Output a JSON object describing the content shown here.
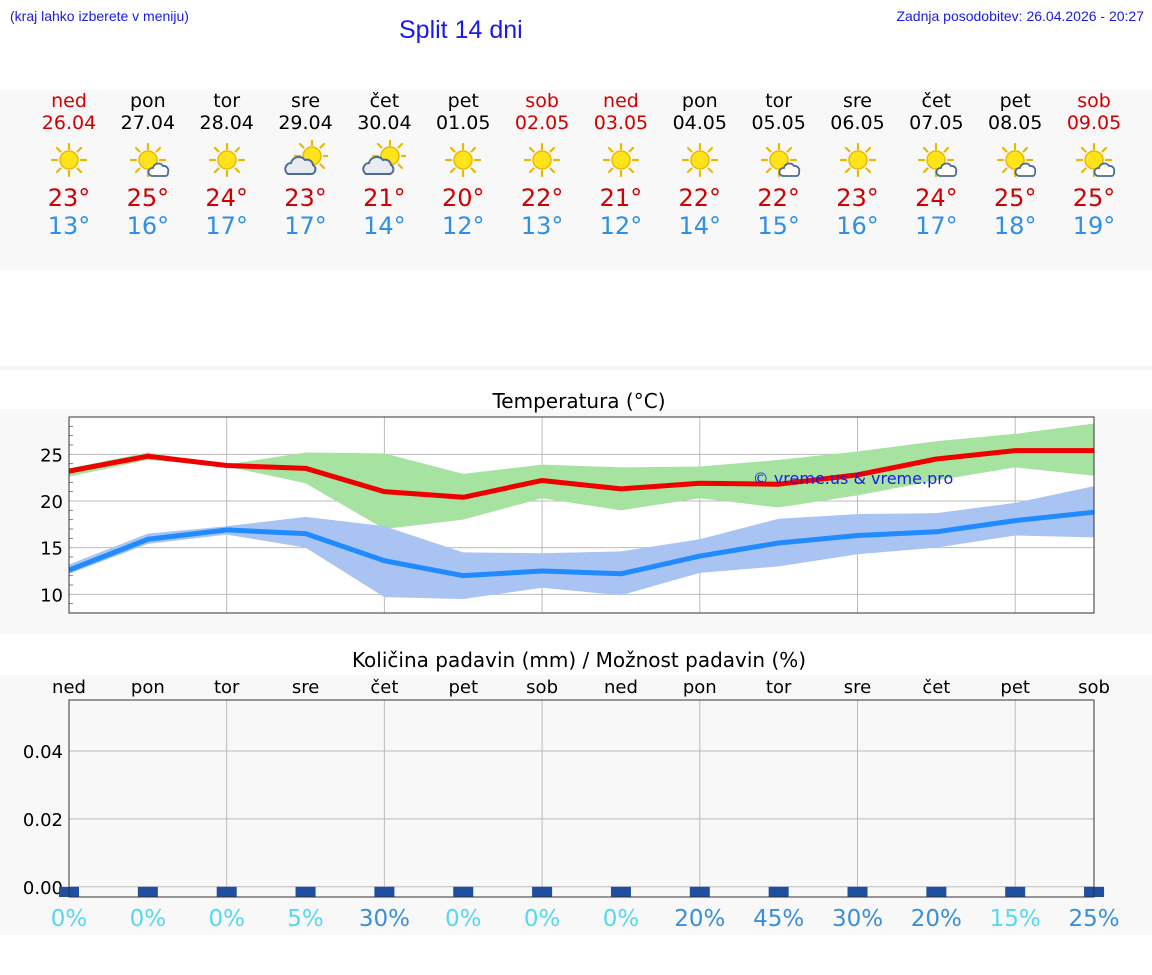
{
  "header": {
    "note": "(kraj lahko izberete v meniju)",
    "title": "Split 14 dni",
    "updated": "Zadnja posodobitev: 26.04.2026 - 20:27"
  },
  "days": [
    {
      "name": "ned",
      "date": "26.04",
      "weekend": true,
      "icon": "sun-icon",
      "max": "23°",
      "min": "13°"
    },
    {
      "name": "pon",
      "date": "27.04",
      "weekend": false,
      "icon": "sun-cloud-icon",
      "max": "25°",
      "min": "16°"
    },
    {
      "name": "tor",
      "date": "28.04",
      "weekend": false,
      "icon": "sun-icon",
      "max": "24°",
      "min": "17°"
    },
    {
      "name": "sre",
      "date": "29.04",
      "weekend": false,
      "icon": "cloud-sun-icon",
      "max": "23°",
      "min": "17°"
    },
    {
      "name": "čet",
      "date": "30.04",
      "weekend": false,
      "icon": "cloud-sun-icon",
      "max": "21°",
      "min": "14°"
    },
    {
      "name": "pet",
      "date": "01.05",
      "weekend": false,
      "icon": "sun-icon",
      "max": "20°",
      "min": "12°"
    },
    {
      "name": "sob",
      "date": "02.05",
      "weekend": true,
      "icon": "sun-icon",
      "max": "22°",
      "min": "13°"
    },
    {
      "name": "ned",
      "date": "03.05",
      "weekend": true,
      "icon": "sun-icon",
      "max": "21°",
      "min": "12°"
    },
    {
      "name": "pon",
      "date": "04.05",
      "weekend": false,
      "icon": "sun-icon",
      "max": "22°",
      "min": "14°"
    },
    {
      "name": "tor",
      "date": "05.05",
      "weekend": false,
      "icon": "sun-cloud-icon",
      "max": "22°",
      "min": "15°"
    },
    {
      "name": "sre",
      "date": "06.05",
      "weekend": false,
      "icon": "sun-icon",
      "max": "23°",
      "min": "16°"
    },
    {
      "name": "čet",
      "date": "07.05",
      "weekend": false,
      "icon": "sun-cloud-icon",
      "max": "24°",
      "min": "17°"
    },
    {
      "name": "pet",
      "date": "08.05",
      "weekend": false,
      "icon": "sun-cloud-icon",
      "max": "25°",
      "min": "18°"
    },
    {
      "name": "sob",
      "date": "09.05",
      "weekend": true,
      "icon": "sun-cloud-icon",
      "max": "25°",
      "min": "19°"
    }
  ],
  "colors": {
    "max_line": "#ee0000",
    "max_band": "#a6e3a0",
    "min_line": "#1f8bff",
    "min_band": "#a9c3f2",
    "weekend": "#d00000",
    "title": "#1a1ae6",
    "pct_low": "#55d8f0",
    "pct_high": "#3a8fd8"
  },
  "chart_data": [
    {
      "type": "line",
      "title": "Temperatura (°C)",
      "watermark": "© vreme.us & vreme.pro",
      "x_count": 14,
      "ylim": [
        8,
        29
      ],
      "yticks": [
        10,
        15,
        20,
        25
      ],
      "series": [
        {
          "name": "max",
          "values": [
            23.2,
            24.8,
            23.8,
            23.5,
            21.0,
            20.4,
            22.2,
            21.3,
            21.9,
            21.8,
            22.8,
            24.5,
            25.4,
            25.4
          ],
          "band_high": [
            23.5,
            25.2,
            23.9,
            25.2,
            25.1,
            22.9,
            23.9,
            23.6,
            23.7,
            24.4,
            25.3,
            26.4,
            27.2,
            28.3
          ],
          "band_low": [
            22.6,
            24.4,
            23.7,
            21.9,
            17.0,
            18.0,
            20.3,
            19.0,
            20.3,
            19.3,
            20.6,
            22.2,
            23.6,
            22.7
          ]
        },
        {
          "name": "min",
          "values": [
            12.6,
            15.9,
            16.9,
            16.5,
            13.6,
            12.0,
            12.5,
            12.2,
            14.1,
            15.5,
            16.3,
            16.7,
            17.9,
            18.8
          ],
          "band_high": [
            13.2,
            16.5,
            17.3,
            18.3,
            17.3,
            14.5,
            14.4,
            14.6,
            15.9,
            18.1,
            18.6,
            18.7,
            19.8,
            21.6
          ],
          "band_low": [
            12.2,
            15.4,
            16.4,
            15.0,
            9.7,
            9.5,
            10.7,
            9.9,
            12.3,
            13.0,
            14.3,
            15.0,
            16.3,
            16.1
          ]
        }
      ]
    },
    {
      "type": "bar",
      "title": "Količina padavin (mm) / Možnost padavin (%)",
      "categories": [
        "ned",
        "pon",
        "tor",
        "sre",
        "čet",
        "pet",
        "sob",
        "ned",
        "pon",
        "tor",
        "sre",
        "čet",
        "pet",
        "sob"
      ],
      "values": [
        0,
        0,
        0,
        0,
        0,
        0,
        0,
        0,
        0,
        0,
        0,
        0,
        0,
        0
      ],
      "ylim": [
        -0.003,
        0.055
      ],
      "yticks": [
        "0.00",
        "0.02",
        "0.04"
      ],
      "ytick_values": [
        0,
        0.02,
        0.04
      ],
      "probabilities": [
        "0%",
        "0%",
        "0%",
        "5%",
        "30%",
        "0%",
        "0%",
        "0%",
        "20%",
        "45%",
        "30%",
        "20%",
        "15%",
        "25%"
      ],
      "prob_values": [
        0,
        0,
        0,
        5,
        30,
        0,
        0,
        0,
        20,
        45,
        30,
        20,
        15,
        25
      ]
    }
  ]
}
